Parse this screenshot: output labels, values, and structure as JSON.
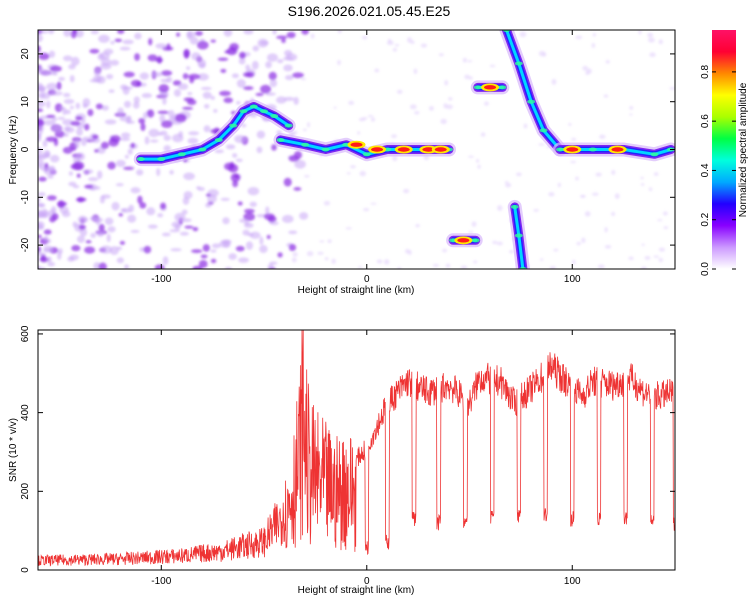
{
  "title": "S196.2026.021.05.45.E25",
  "chart_data": [
    {
      "type": "heatmap",
      "name": "spectrogram",
      "xlabel": "Height of straight line (km)",
      "ylabel": "Frequency (Hz)",
      "xlim": [
        -160,
        150
      ],
      "ylim": [
        -25,
        25
      ],
      "xticks": [
        -100,
        0,
        100
      ],
      "yticks": [
        20,
        10,
        0,
        -10,
        -20
      ],
      "colorbar": {
        "label": "Normalized spectral amplitude",
        "range": [
          0,
          0.97
        ],
        "ticks": [
          0.0,
          0.2,
          0.4,
          0.6,
          0.8
        ],
        "colors": [
          "#ffffff",
          "#cc99ff",
          "#8800ff",
          "#2200ff",
          "#00aaff",
          "#00ffdd",
          "#00ff44",
          "#aaff00",
          "#ffff00",
          "#ff8800",
          "#ff0033",
          "#ff1166"
        ]
      },
      "traces": [
        {
          "name": "main-chirp",
          "points": [
            [
              -110,
              -2
            ],
            [
              -100,
              -2
            ],
            [
              -90,
              -1
            ],
            [
              -80,
              0
            ],
            [
              -72,
              2
            ],
            [
              -65,
              5
            ],
            [
              -60,
              8
            ],
            [
              -55,
              9
            ],
            [
              -50,
              8
            ],
            [
              -45,
              7
            ],
            [
              -38,
              5
            ]
          ]
        },
        {
          "name": "flat-left",
          "points": [
            [
              -42,
              2
            ],
            [
              -30,
              1
            ],
            [
              -20,
              0
            ],
            [
              -10,
              1
            ],
            [
              0,
              -1
            ],
            [
              10,
              0
            ],
            [
              20,
              0
            ],
            [
              30,
              0
            ],
            [
              40,
              0
            ]
          ]
        },
        {
          "name": "upper-burst",
          "points": [
            [
              54,
              13
            ],
            [
              66,
              13
            ]
          ]
        },
        {
          "name": "lower-burst",
          "points": [
            [
              42,
              -19
            ],
            [
              53,
              -19
            ]
          ]
        },
        {
          "name": "descending-line",
          "points": [
            [
              68,
              25
            ],
            [
              74,
              18
            ],
            [
              80,
              10
            ],
            [
              86,
              4
            ],
            [
              94,
              0
            ]
          ]
        },
        {
          "name": "low-descending",
          "points": [
            [
              72,
              -12
            ],
            [
              74,
              -18
            ],
            [
              76,
              -25
            ]
          ]
        },
        {
          "name": "flat-right",
          "points": [
            [
              94,
              0
            ],
            [
              110,
              0
            ],
            [
              125,
              0
            ],
            [
              140,
              -1
            ],
            [
              148,
              0
            ]
          ]
        }
      ],
      "peaks": [
        [
          -5,
          1
        ],
        [
          5,
          0
        ],
        [
          18,
          0
        ],
        [
          30,
          0
        ],
        [
          36,
          0
        ],
        [
          60,
          13
        ],
        [
          47,
          -19
        ],
        [
          100,
          0
        ],
        [
          122,
          0
        ]
      ]
    },
    {
      "type": "line",
      "name": "snr",
      "xlabel": "Height of straight line (km)",
      "ylabel": "SNR (10 * v/v)",
      "xlim": [
        -160,
        150
      ],
      "ylim": [
        0,
        610
      ],
      "xticks": [
        -100,
        0,
        100
      ],
      "yticks": [
        0,
        200,
        400,
        600
      ],
      "color": "#ee3333",
      "envelope": [
        {
          "x": -160,
          "y": 30
        },
        {
          "x": -120,
          "y": 35
        },
        {
          "x": -90,
          "y": 45
        },
        {
          "x": -70,
          "y": 60
        },
        {
          "x": -50,
          "y": 90
        },
        {
          "x": -42,
          "y": 160
        },
        {
          "x": -38,
          "y": 250
        },
        {
          "x": -33,
          "y": 420
        },
        {
          "x": -31,
          "y": 600
        },
        {
          "x": -28,
          "y": 380
        },
        {
          "x": -22,
          "y": 340
        },
        {
          "x": -15,
          "y": 300
        },
        {
          "x": -10,
          "y": 320
        },
        {
          "x": -5,
          "y": 300
        },
        {
          "x": 0,
          "y": 330
        },
        {
          "x": 5,
          "y": 390
        },
        {
          "x": 10,
          "y": 450
        },
        {
          "x": 20,
          "y": 510
        },
        {
          "x": 30,
          "y": 480
        },
        {
          "x": 40,
          "y": 500
        },
        {
          "x": 50,
          "y": 450
        },
        {
          "x": 55,
          "y": 520
        },
        {
          "x": 65,
          "y": 510
        },
        {
          "x": 72,
          "y": 450
        },
        {
          "x": 80,
          "y": 490
        },
        {
          "x": 90,
          "y": 550
        },
        {
          "x": 95,
          "y": 520
        },
        {
          "x": 105,
          "y": 470
        },
        {
          "x": 110,
          "y": 510
        },
        {
          "x": 120,
          "y": 500
        },
        {
          "x": 128,
          "y": 520
        },
        {
          "x": 135,
          "y": 480
        },
        {
          "x": 142,
          "y": 470
        },
        {
          "x": 150,
          "y": 480
        }
      ],
      "dips": [
        {
          "x": 0,
          "y": 40
        },
        {
          "x": 10,
          "y": 50
        },
        {
          "x": 23,
          "y": 110
        },
        {
          "x": 35,
          "y": 100
        },
        {
          "x": 48,
          "y": 100
        },
        {
          "x": 61,
          "y": 110
        },
        {
          "x": 74,
          "y": 120
        },
        {
          "x": 87,
          "y": 120
        },
        {
          "x": 100,
          "y": 110
        },
        {
          "x": 113,
          "y": 110
        },
        {
          "x": 126,
          "y": 110
        },
        {
          "x": 139,
          "y": 100
        },
        {
          "x": 150,
          "y": 100
        }
      ]
    }
  ]
}
